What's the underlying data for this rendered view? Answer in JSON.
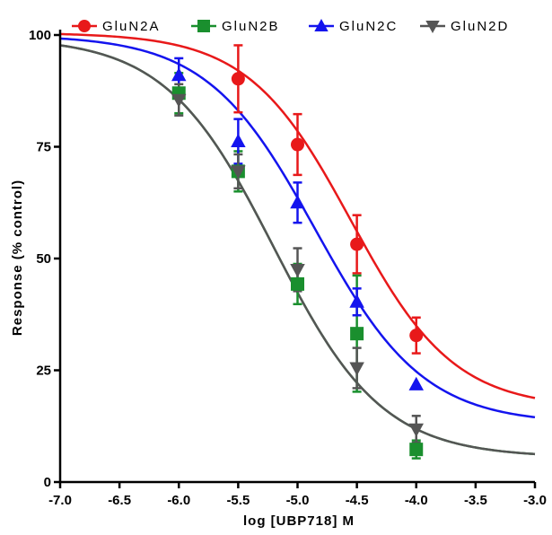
{
  "chart_data": {
    "type": "scatter",
    "title": "",
    "xlabel": "log [UBP718] M",
    "ylabel": "Response (% control)",
    "xlim": [
      -7.0,
      -3.0
    ],
    "ylim": [
      0,
      100
    ],
    "x_ticks": [
      "-7.0",
      "-6.5",
      "-6.0",
      "-5.5",
      "-5.0",
      "-4.5",
      "-4.0",
      "-3.5",
      "-3.0"
    ],
    "y_ticks": [
      "0",
      "25",
      "50",
      "75",
      "100"
    ],
    "grid": false,
    "legend_position": "top",
    "x": [
      -6.0,
      -5.5,
      -5.0,
      -4.5,
      -4.0
    ],
    "series": [
      {
        "name": "GluN2A",
        "color": "#e8191a",
        "marker": "circle",
        "values": [
          90.2,
          75.5,
          53.2,
          32.8
        ],
        "x": [
          -5.5,
          -5.0,
          -4.5,
          -4.0
        ],
        "errors": [
          7.5,
          6.8,
          6.5,
          4.0
        ],
        "fit": {
          "top": 100.5,
          "bottom": 16.5,
          "logIC50": -4.55,
          "hill": 1.0
        }
      },
      {
        "name": "GluN2B",
        "color": "#1a8f2e",
        "marker": "square",
        "values": [
          87.0,
          69.5,
          44.3,
          33.2,
          7.3
        ],
        "x": [
          -6.0,
          -5.5,
          -5.0,
          -4.5,
          -4.0
        ],
        "errors": [
          4.5,
          4.5,
          4.5,
          13.0,
          2.0
        ],
        "fit": {
          "top": 99.5,
          "bottom": 5.5,
          "logIC50": -5.2,
          "hill": 0.95
        }
      },
      {
        "name": "GluN2C",
        "color": "#1414ee",
        "marker": "triangle-up",
        "values": [
          91.0,
          76.2,
          62.5,
          40.3,
          21.8
        ],
        "x": [
          -6.0,
          -5.5,
          -5.0,
          -4.5,
          -4.0
        ],
        "errors": [
          3.8,
          5.0,
          4.5,
          3.0,
          0
        ],
        "fit": {
          "top": 100.0,
          "bottom": 13.0,
          "logIC50": -4.85,
          "hill": 0.95
        }
      },
      {
        "name": "GluN2D",
        "color": "#555555",
        "marker": "triangle-down",
        "values": [
          85.5,
          69.5,
          47.5,
          25.5,
          11.8
        ],
        "x": [
          -6.0,
          -5.5,
          -5.0,
          -4.5,
          -4.0
        ],
        "errors": [
          3.5,
          3.8,
          4.8,
          4.5,
          3.0
        ],
        "fit": {
          "top": 99.5,
          "bottom": 5.5,
          "logIC50": -5.2,
          "hill": 0.95
        }
      }
    ]
  }
}
